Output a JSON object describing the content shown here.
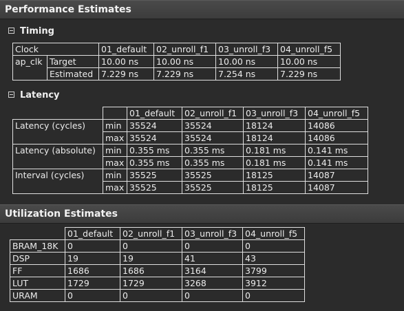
{
  "performance": {
    "title": "Performance Estimates",
    "timing": {
      "title": "Timing",
      "columns": [
        "Clock",
        "01_default",
        "02_unroll_f1",
        "03_unroll_f3",
        "04_unroll_f5"
      ],
      "clock": "ap_clk",
      "rows": [
        {
          "label": "Target",
          "values": [
            "10.00 ns",
            "10.00 ns",
            "10.00 ns",
            "10.00 ns"
          ]
        },
        {
          "label": "Estimated",
          "values": [
            "7.229 ns",
            "7.229 ns",
            "7.254 ns",
            "7.229 ns"
          ]
        }
      ]
    },
    "latency": {
      "title": "Latency",
      "columns": [
        "01_default",
        "02_unroll_f1",
        "03_unroll_f3",
        "04_unroll_f5"
      ],
      "groups": [
        {
          "label": "Latency (cycles)",
          "rows": [
            {
              "kind": "min",
              "values": [
                "35524",
                "35524",
                "18124",
                "14086"
              ]
            },
            {
              "kind": "max",
              "values": [
                "35524",
                "35524",
                "18124",
                "14086"
              ]
            }
          ]
        },
        {
          "label": "Latency (absolute)",
          "rows": [
            {
              "kind": "min",
              "values": [
                "0.355 ms",
                "0.355 ms",
                "0.181 ms",
                "0.141 ms"
              ]
            },
            {
              "kind": "max",
              "values": [
                "0.355 ms",
                "0.355 ms",
                "0.181 ms",
                "0.141 ms"
              ]
            }
          ]
        },
        {
          "label": "Interval (cycles)",
          "rows": [
            {
              "kind": "min",
              "values": [
                "35525",
                "35525",
                "18125",
                "14087"
              ]
            },
            {
              "kind": "max",
              "values": [
                "35525",
                "35525",
                "18125",
                "14087"
              ]
            }
          ]
        }
      ]
    }
  },
  "utilization": {
    "title": "Utilization Estimates",
    "columns": [
      "01_default",
      "02_unroll_f1",
      "03_unroll_f3",
      "04_unroll_f5"
    ],
    "rows": [
      {
        "label": "BRAM_18K",
        "values": [
          "0",
          "0",
          "0",
          "0"
        ]
      },
      {
        "label": "DSP",
        "values": [
          "19",
          "19",
          "41",
          "43"
        ]
      },
      {
        "label": "FF",
        "values": [
          "1686",
          "1686",
          "3164",
          "3799"
        ]
      },
      {
        "label": "LUT",
        "values": [
          "1729",
          "1729",
          "3268",
          "3912"
        ]
      },
      {
        "label": "URAM",
        "values": [
          "0",
          "0",
          "0",
          "0"
        ]
      }
    ]
  }
}
